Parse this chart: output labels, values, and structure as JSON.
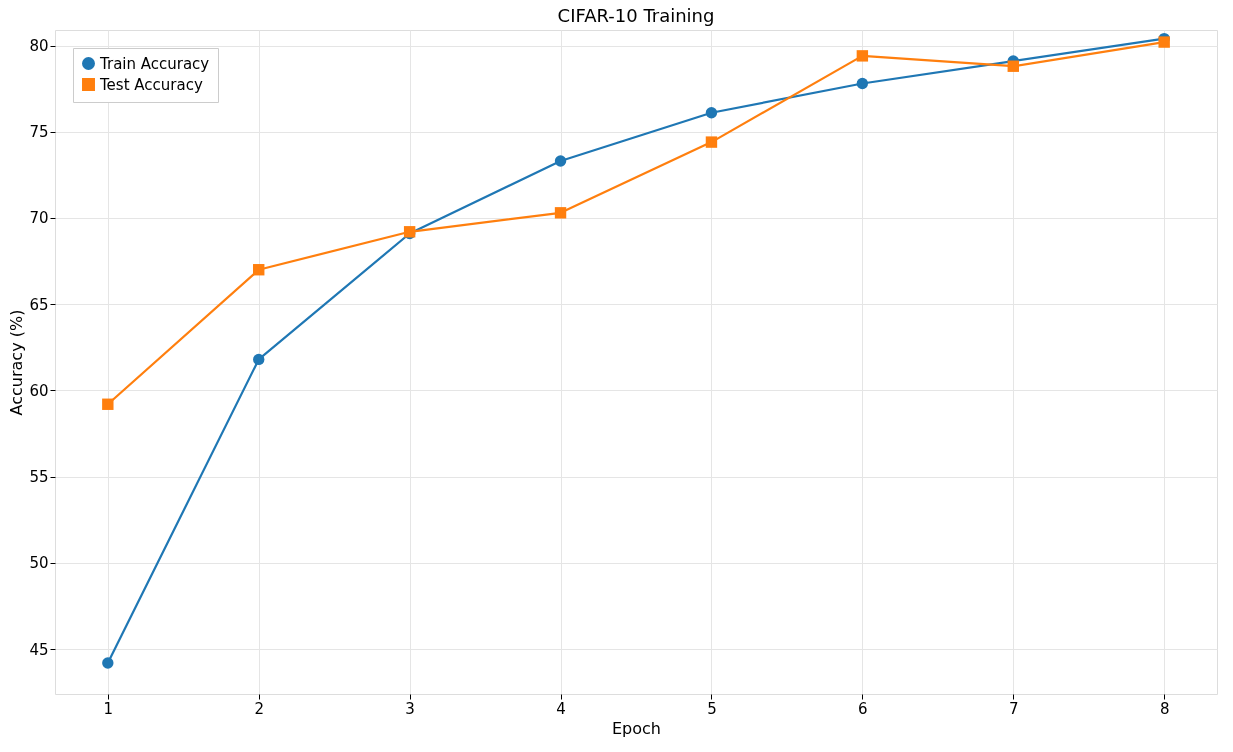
{
  "chart_data": {
    "type": "line",
    "title": "CIFAR-10 Training",
    "xlabel": "Epoch",
    "ylabel": "Accuracy (%)",
    "x": [
      1,
      2,
      3,
      4,
      5,
      6,
      7,
      8
    ],
    "series": [
      {
        "name": "Train Accuracy",
        "color": "#1f77b4",
        "marker": "circle",
        "values": [
          44.2,
          61.8,
          69.1,
          73.3,
          76.1,
          77.8,
          79.1,
          80.4
        ]
      },
      {
        "name": "Test Accuracy",
        "color": "#ff7f0e",
        "marker": "square",
        "values": [
          59.2,
          67.0,
          69.2,
          70.3,
          74.4,
          79.4,
          78.8,
          80.2
        ]
      }
    ],
    "xlim": [
      0.65,
      8.35
    ],
    "xticks": [
      1,
      2,
      3,
      4,
      5,
      6,
      7,
      8
    ],
    "ylim": [
      42.4,
      80.9
    ],
    "yticks": [
      45,
      50,
      55,
      60,
      65,
      70,
      75,
      80
    ],
    "grid": true,
    "legend": "top left",
    "line_style": "solid"
  }
}
